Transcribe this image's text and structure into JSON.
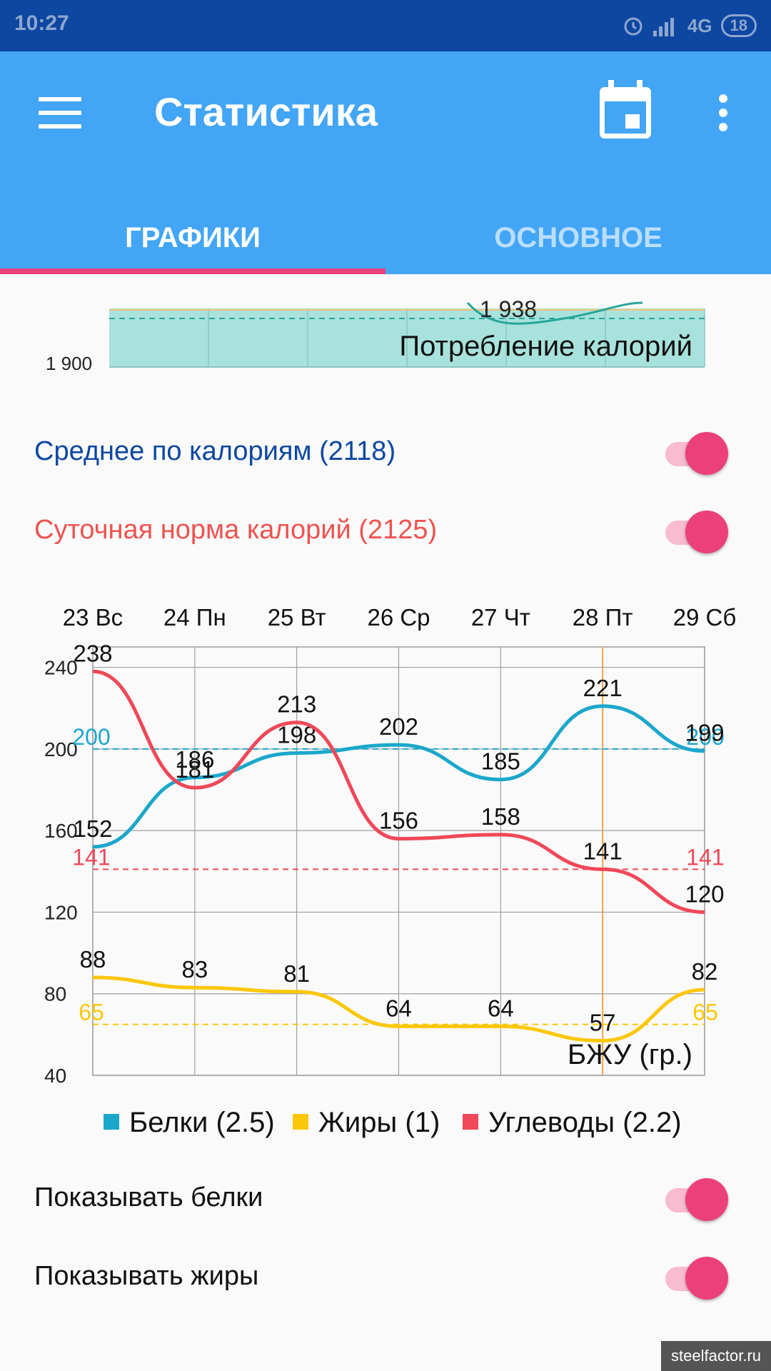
{
  "statusbar": {
    "time": "10:27",
    "network": "4G",
    "battery": "18"
  },
  "appbar": {
    "title": "Статистика",
    "menu_icon": "menu-icon",
    "calendar_icon": "calendar-icon",
    "overflow_icon": "more-vert-icon"
  },
  "tabs": [
    {
      "label": "ГРАФИКИ",
      "active": true
    },
    {
      "label": "ОСНОВНОЕ",
      "active": false
    }
  ],
  "calorie_chart": {
    "title": "Потребление калорий",
    "y_tick": "1 900",
    "visible_label": "1 938"
  },
  "settings": {
    "avg_calories": {
      "label": "Среднее по калориям (2118)",
      "color": "#0d47a1",
      "on": true
    },
    "daily_norm": {
      "label": "Суточная норма калорий (2125)",
      "color": "#ef5350",
      "on": true
    },
    "show_proteins": {
      "label": "Показывать белки",
      "on": true
    },
    "show_fats": {
      "label": "Показывать жиры",
      "on": true
    }
  },
  "chart_data": {
    "type": "line",
    "title": "БЖУ (гр.)",
    "categories": [
      "23 Вс",
      "24 Пн",
      "25 Вт",
      "26 Ср",
      "27 Чт",
      "28 Пт",
      "29 Сб"
    ],
    "yticks": [
      "240",
      "200",
      "160",
      "120",
      "80",
      "40"
    ],
    "ylim": [
      40,
      250
    ],
    "series": [
      {
        "name": "Белки (2.5)",
        "color": "#1ba7cc",
        "values": [
          152,
          186,
          198,
          202,
          185,
          221,
          199
        ],
        "value_labels": [
          "152",
          "186",
          "198",
          "202",
          "185",
          "221",
          "199"
        ],
        "target": 200,
        "target_label": "200"
      },
      {
        "name": "Жиры (1)",
        "color": "#fbc707",
        "values": [
          88,
          83,
          81,
          64,
          64,
          57,
          82
        ],
        "value_labels": [
          "88",
          "83",
          "81",
          "64",
          "64",
          "57",
          "82"
        ],
        "target": 65,
        "target_label": "65"
      },
      {
        "name": "Углеводы (2.2)",
        "color": "#f04858",
        "values": [
          238,
          181,
          213,
          156,
          158,
          141,
          120
        ],
        "value_labels": [
          "238",
          "181",
          "213",
          "156",
          "158",
          "141",
          "120"
        ],
        "target": 141,
        "target_label": "141"
      }
    ],
    "highlight_category": "28 Пт",
    "grid": true,
    "legend": "bottom"
  },
  "watermark": "steelfactor.ru"
}
